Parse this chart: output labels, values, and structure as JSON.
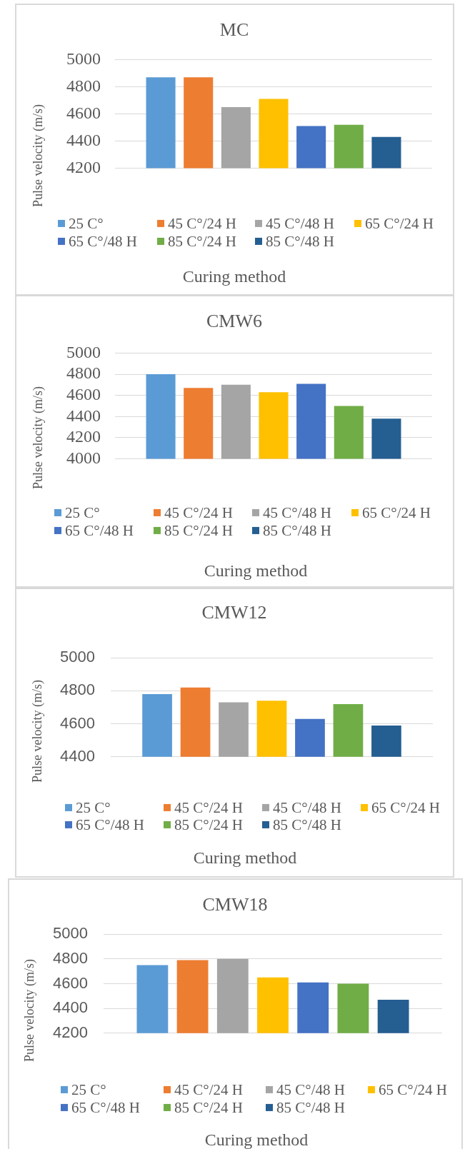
{
  "chart_data": [
    {
      "type": "bar",
      "title": "MC",
      "xlabel": "Curing method",
      "ylabel": "Pulse velocity (m/s)",
      "categories": [
        null
      ],
      "series": [
        {
          "name": "25 C°",
          "color": "#5b9bd5",
          "values": [
            4870
          ]
        },
        {
          "name": "45 C°/24 H",
          "color": "#ed7d31",
          "values": [
            4870
          ]
        },
        {
          "name": "45 C°/48 H",
          "color": "#a5a5a5",
          "values": [
            4650
          ]
        },
        {
          "name": "65 C°/24 H",
          "color": "#ffc000",
          "values": [
            4710
          ]
        },
        {
          "name": "65 C°/48 H",
          "color": "#4472c4",
          "values": [
            4510
          ]
        },
        {
          "name": "85 C°/24 H",
          "color": "#70ad47",
          "values": [
            4520
          ]
        },
        {
          "name": "85 C°/48 H",
          "color": "#255e91",
          "values": [
            4430
          ]
        }
      ],
      "ylim": [
        4200,
        5000
      ],
      "yticks": [
        4200,
        4400,
        4600,
        4800,
        5000
      ],
      "grid": "y",
      "legend": "bottom",
      "tick_labels": "y"
    },
    {
      "type": "bar",
      "title": "CMW6",
      "xlabel": "Curing method",
      "ylabel": "Pulse velocity (m/s)",
      "categories": [
        null
      ],
      "series": [
        {
          "name": "25 C°",
          "color": "#5b9bd5",
          "values": [
            4800
          ]
        },
        {
          "name": "45 C°/24 H",
          "color": "#ed7d31",
          "values": [
            4670
          ]
        },
        {
          "name": "45 C°/48 H",
          "color": "#a5a5a5",
          "values": [
            4700
          ]
        },
        {
          "name": "65 C°/24 H",
          "color": "#ffc000",
          "values": [
            4630
          ]
        },
        {
          "name": "65 C°/48 H",
          "color": "#4472c4",
          "values": [
            4710
          ]
        },
        {
          "name": "85 C°/24 H",
          "color": "#70ad47",
          "values": [
            4500
          ]
        },
        {
          "name": "85 C°/48 H",
          "color": "#255e91",
          "values": [
            4380
          ]
        }
      ],
      "ylim": [
        4000,
        5000
      ],
      "yticks": [
        4000,
        4200,
        4400,
        4600,
        4800,
        5000
      ],
      "grid": "y",
      "legend": "bottom",
      "tick_labels": "y"
    },
    {
      "type": "bar",
      "title": "CMW12",
      "xlabel": "Curing method",
      "ylabel": "Pulse velocity (m/s)",
      "categories": [
        null
      ],
      "series": [
        {
          "name": "25 C°",
          "color": "#5b9bd5",
          "values": [
            4780
          ]
        },
        {
          "name": "45 C°/24 H",
          "color": "#ed7d31",
          "values": [
            4820
          ]
        },
        {
          "name": "45 C°/48 H",
          "color": "#a5a5a5",
          "values": [
            4730
          ]
        },
        {
          "name": "65 C°/24 H",
          "color": "#ffc000",
          "values": [
            4740
          ]
        },
        {
          "name": "65 C°/48 H",
          "color": "#4472c4",
          "values": [
            4630
          ]
        },
        {
          "name": "85 C°/24 H",
          "color": "#70ad47",
          "values": [
            4720
          ]
        },
        {
          "name": "85 C°/48 H",
          "color": "#255e91",
          "values": [
            4590
          ]
        }
      ],
      "ylim": [
        4400,
        5000
      ],
      "yticks": [
        4400,
        4600,
        4800,
        5000
      ],
      "grid": "y",
      "legend": "bottom",
      "tick_labels": "y"
    },
    {
      "type": "bar",
      "title": "CMW18",
      "xlabel": "Curing method",
      "ylabel": "Pulse velocity (m/s)",
      "categories": [
        null
      ],
      "series": [
        {
          "name": "25 C°",
          "color": "#5b9bd5",
          "values": [
            4750
          ]
        },
        {
          "name": "45 C°/24 H",
          "color": "#ed7d31",
          "values": [
            4790
          ]
        },
        {
          "name": "45 C°/48 H",
          "color": "#a5a5a5",
          "values": [
            4800
          ]
        },
        {
          "name": "65 C°/24 H",
          "color": "#ffc000",
          "values": [
            4650
          ]
        },
        {
          "name": "65 C°/48 H",
          "color": "#4472c4",
          "values": [
            4610
          ]
        },
        {
          "name": "85 C°/24 H",
          "color": "#70ad47",
          "values": [
            4600
          ]
        },
        {
          "name": "85 C°/48 H",
          "color": "#255e91",
          "values": [
            4470
          ]
        }
      ],
      "ylim": [
        4200,
        5000
      ],
      "yticks": [
        4200,
        4400,
        4600,
        4800,
        5000
      ],
      "grid": "y",
      "legend": "bottom",
      "tick_labels": "y"
    }
  ]
}
